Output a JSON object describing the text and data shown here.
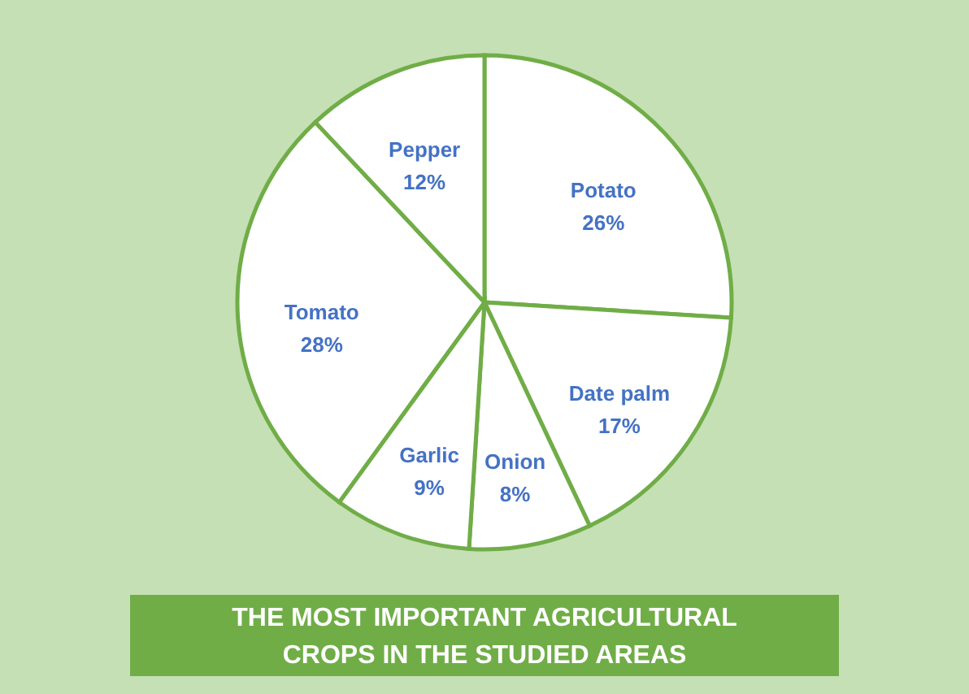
{
  "chart_data": {
    "type": "pie",
    "title": "THE MOST IMPORTANT AGRICULTURAL CROPS IN THE STUDIED AREAS",
    "categories": [
      "Potato",
      "Date palm",
      "Onion",
      "Garlic",
      "Tomato",
      "Pepper"
    ],
    "values": [
      26,
      17,
      8,
      9,
      28,
      12
    ],
    "colors": [
      "#ffffff",
      "#ffffff",
      "#ffffff",
      "#ffffff",
      "#ffffff",
      "#ffffff"
    ],
    "value_labels": [
      "26%",
      "17%",
      "8%",
      "9%",
      "28%",
      "12%"
    ]
  }
}
